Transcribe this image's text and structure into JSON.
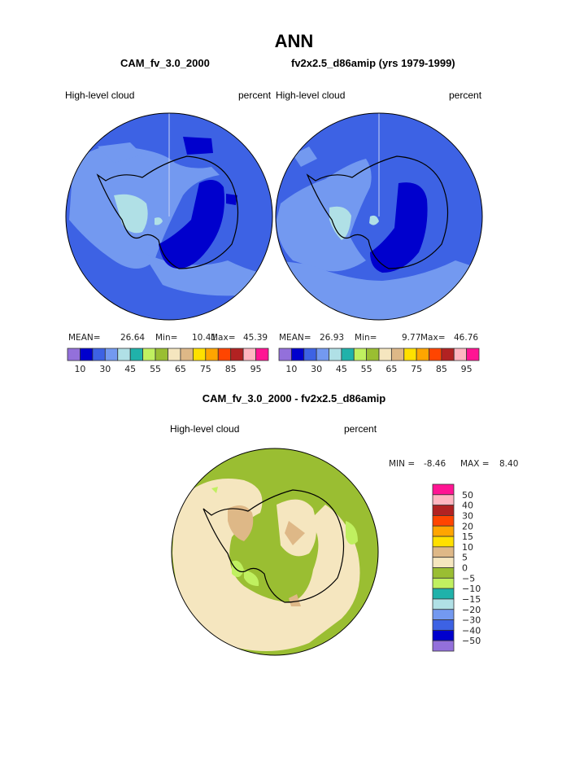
{
  "title": "ANN",
  "panels": [
    {
      "case": "CAM_fv_3.0_2000",
      "left_label": "High-level cloud",
      "right_label": "percent",
      "stats": {
        "mean_label": "MEAN=",
        "mean": "26.64",
        "min_label": "Min=",
        "min": "10.41",
        "max_label": "Max=",
        "max": "45.39"
      }
    },
    {
      "case": "fv2x2.5_d86amip (yrs 1979-1999)",
      "left_label": "High-level cloud",
      "right_label": "percent",
      "stats": {
        "mean_label": "MEAN=",
        "mean": "26.93",
        "min_label": "Min=",
        "min": "9.77",
        "max_label": "Max=",
        "max": "46.76"
      }
    }
  ],
  "colorbar": {
    "colors": [
      "#9370DB",
      "#0000CD",
      "#3D62E4",
      "#7399F0",
      "#B0E0E6",
      "#20B2AA",
      "#C0F060",
      "#9ABE32",
      "#F5E6BF",
      "#DEB887",
      "#FFE000",
      "#FFA500",
      "#FF4500",
      "#B22222",
      "#FFB6C1",
      "#FF1493"
    ],
    "labels": [
      "10",
      "30",
      "45",
      "55",
      "65",
      "75",
      "85",
      "95"
    ]
  },
  "diff": {
    "title": "CAM_fv_3.0_2000 - fv2x2.5_d86amip",
    "left_label": "High-level cloud",
    "right_label": "percent",
    "min_label": "MIN =",
    "min": "-8.46",
    "max_label": "MAX =",
    "max": "8.40",
    "colorbar_colors": [
      "#FF1493",
      "#FFB6C1",
      "#B22222",
      "#FF4500",
      "#FFA500",
      "#FFE000",
      "#DEB887",
      "#F5E6BF",
      "#9ABE32",
      "#C0F060",
      "#20B2AA",
      "#B0E0E6",
      "#7399F0",
      "#3D62E4",
      "#0000CD",
      "#9370DB"
    ],
    "colorbar_labels": [
      "50",
      "40",
      "30",
      "20",
      "15",
      "10",
      "5",
      "0",
      "−5",
      "−10",
      "−15",
      "−20",
      "−30",
      "−40",
      "−50"
    ]
  }
}
